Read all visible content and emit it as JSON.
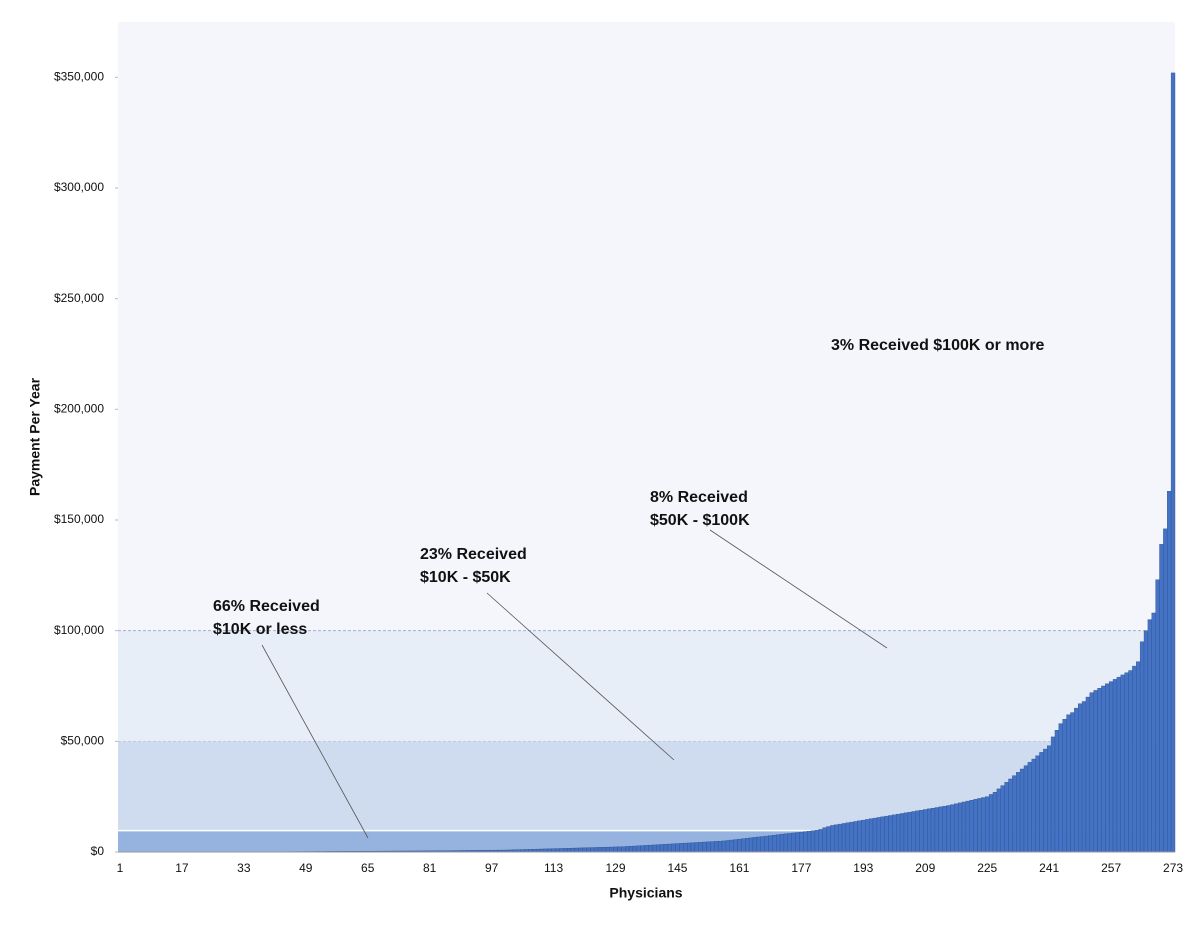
{
  "chart_data": {
    "type": "bar",
    "xlabel": "Physicians",
    "ylabel": "Payment Per Year",
    "color": "#4472c4",
    "edge_color": "#2f528f",
    "ylim": [
      0,
      375000
    ],
    "yticks": [
      {
        "value": 0,
        "label": "$0"
      },
      {
        "value": 50000,
        "label": "$50,000"
      },
      {
        "value": 100000,
        "label": "$100,000"
      },
      {
        "value": 150000,
        "label": "$150,000"
      },
      {
        "value": 200000,
        "label": "$200,000"
      },
      {
        "value": 250000,
        "label": "$250,000"
      },
      {
        "value": 300000,
        "label": "$300,000"
      },
      {
        "value": 350000,
        "label": "$350,000"
      }
    ],
    "bands": [
      {
        "from": 0,
        "to": 10000,
        "color": "#95b3de"
      },
      {
        "from": 10000,
        "to": 50000,
        "color": "#cfdcef"
      },
      {
        "from": 50000,
        "to": 100000,
        "color": "#e8eef8"
      }
    ],
    "background": "#f5f6fc",
    "annotations": [
      {
        "lines": [
          "66% Received",
          "$10K or less"
        ]
      },
      {
        "lines": [
          "23% Received",
          "$10K - $50K"
        ]
      },
      {
        "lines": [
          "8% Received",
          "$50K - $100K"
        ]
      },
      {
        "lines": [
          "3% Received $100K or more"
        ]
      }
    ],
    "categories": [
      "1",
      null,
      null,
      null,
      null,
      null,
      null,
      null,
      null,
      null,
      null,
      null,
      null,
      null,
      null,
      null,
      "17",
      null,
      null,
      null,
      null,
      null,
      null,
      null,
      null,
      null,
      null,
      null,
      null,
      null,
      null,
      null,
      "33",
      null,
      null,
      null,
      null,
      null,
      null,
      null,
      null,
      null,
      null,
      null,
      null,
      null,
      null,
      null,
      "49",
      null,
      null,
      null,
      null,
      null,
      null,
      null,
      null,
      null,
      null,
      null,
      null,
      null,
      null,
      null,
      "65",
      null,
      null,
      null,
      null,
      null,
      null,
      null,
      null,
      null,
      null,
      null,
      null,
      null,
      null,
      null,
      "81",
      null,
      null,
      null,
      null,
      null,
      null,
      null,
      null,
      null,
      null,
      null,
      null,
      null,
      null,
      null,
      "97",
      null,
      null,
      null,
      null,
      null,
      null,
      null,
      null,
      null,
      null,
      null,
      null,
      null,
      null,
      null,
      "113",
      null,
      null,
      null,
      null,
      null,
      null,
      null,
      null,
      null,
      null,
      null,
      null,
      null,
      null,
      null,
      "129",
      null,
      null,
      null,
      null,
      null,
      null,
      null,
      null,
      null,
      null,
      null,
      null,
      null,
      null,
      null,
      "145",
      null,
      null,
      null,
      null,
      null,
      null,
      null,
      null,
      null,
      null,
      null,
      null,
      null,
      null,
      null,
      "161",
      null,
      null,
      null,
      null,
      null,
      null,
      null,
      null,
      null,
      null,
      null,
      null,
      null,
      null,
      null,
      "177",
      null,
      null,
      null,
      null,
      null,
      null,
      null,
      null,
      null,
      null,
      null,
      null,
      null,
      null,
      null,
      "193",
      null,
      null,
      null,
      null,
      null,
      null,
      null,
      null,
      null,
      null,
      null,
      null,
      null,
      null,
      null,
      "209",
      null,
      null,
      null,
      null,
      null,
      null,
      null,
      null,
      null,
      null,
      null,
      null,
      null,
      null,
      null,
      "225",
      null,
      null,
      null,
      null,
      null,
      null,
      null,
      null,
      null,
      null,
      null,
      null,
      null,
      null,
      null,
      "241",
      null,
      null,
      null,
      null,
      null,
      null,
      null,
      null,
      null,
      null,
      null,
      null,
      null,
      null,
      null,
      "257",
      null,
      null,
      null,
      null,
      null,
      null,
      null,
      null,
      null,
      null,
      null,
      null,
      null,
      null,
      null,
      "273"
    ],
    "values": [
      0,
      0,
      0,
      0,
      0,
      0,
      0,
      0,
      0,
      0,
      0,
      0,
      0,
      0,
      0,
      0,
      0,
      0,
      0,
      0,
      0,
      0,
      0,
      0,
      0,
      0,
      0,
      0,
      0,
      0,
      50,
      50,
      60,
      60,
      70,
      80,
      90,
      100,
      100,
      110,
      120,
      130,
      140,
      150,
      160,
      170,
      180,
      190,
      200,
      210,
      220,
      230,
      240,
      250,
      260,
      270,
      280,
      290,
      300,
      310,
      320,
      330,
      340,
      350,
      360,
      370,
      380,
      390,
      400,
      410,
      420,
      430,
      440,
      450,
      460,
      470,
      480,
      490,
      500,
      510,
      520,
      530,
      540,
      560,
      580,
      600,
      620,
      640,
      660,
      680,
      700,
      720,
      740,
      760,
      780,
      800,
      820,
      840,
      860,
      880,
      900,
      950,
      1000,
      1050,
      1100,
      1150,
      1200,
      1250,
      1300,
      1350,
      1400,
      1450,
      1500,
      1550,
      1600,
      1650,
      1700,
      1750,
      1800,
      1850,
      1900,
      1950,
      2000,
      2050,
      2100,
      2150,
      2200,
      2250,
      2300,
      2350,
      2400,
      2500,
      2600,
      2700,
      2800,
      2900,
      3000,
      3100,
      3200,
      3300,
      3400,
      3500,
      3600,
      3700,
      3800,
      3900,
      4000,
      4100,
      4200,
      4300,
      4400,
      4500,
      4600,
      4700,
      4800,
      4900,
      5000,
      5200,
      5400,
      5600,
      5800,
      6000,
      6200,
      6400,
      6600,
      6800,
      7000,
      7200,
      7400,
      7600,
      7800,
      8000,
      8200,
      8400,
      8600,
      8800,
      9000,
      9200,
      9400,
      9600,
      9800,
      10200,
      11000,
      11500,
      12000,
      12300,
      12600,
      12900,
      13200,
      13500,
      13800,
      14100,
      14400,
      14700,
      15000,
      15300,
      15600,
      15900,
      16200,
      16500,
      16800,
      17100,
      17400,
      17700,
      18000,
      18300,
      18600,
      18900,
      19200,
      19500,
      19800,
      20100,
      20400,
      20700,
      21000,
      21400,
      21800,
      22200,
      22600,
      23000,
      23400,
      23800,
      24200,
      24600,
      25000,
      26000,
      27000,
      28500,
      30000,
      31500,
      33000,
      34500,
      36000,
      37500,
      39000,
      40500,
      42000,
      43500,
      45000,
      46500,
      48000,
      52000,
      55000,
      58000,
      60000,
      62000,
      63000,
      65000,
      67000,
      68000,
      70000,
      72000,
      73000,
      74000,
      75000,
      76000,
      77000,
      78000,
      79000,
      80000,
      81000,
      82000,
      84000,
      86000,
      95000,
      100000,
      105000,
      108000,
      123000,
      139000,
      146000,
      163000,
      352000
    ]
  }
}
